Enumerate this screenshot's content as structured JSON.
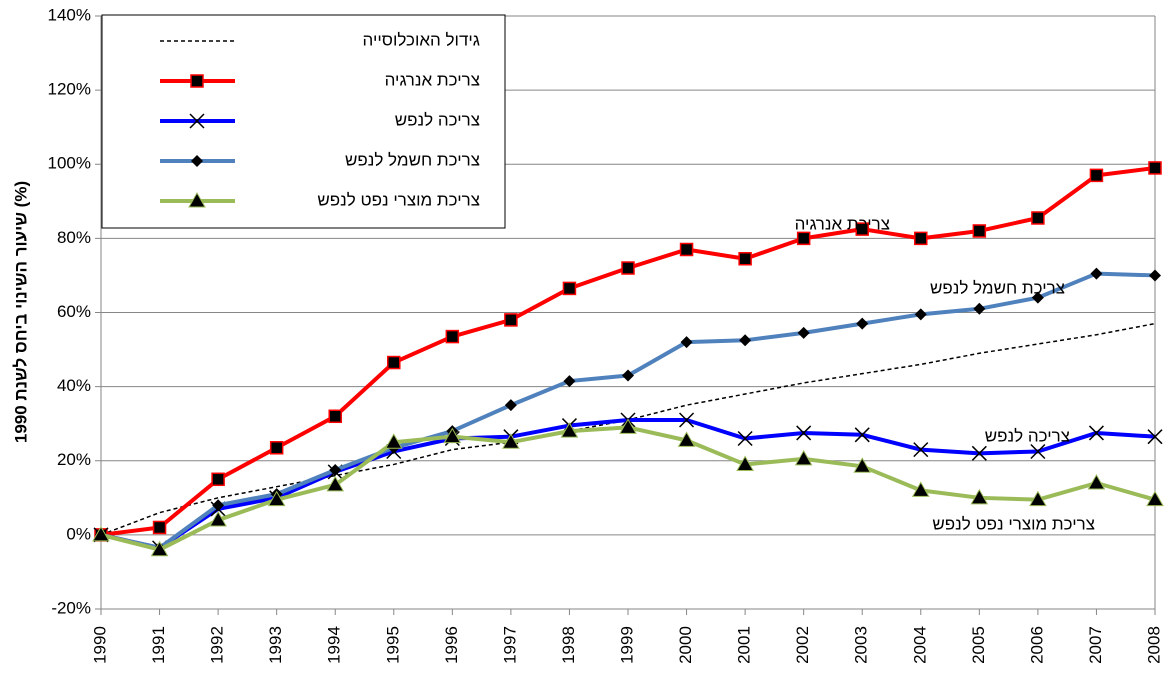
{
  "chart_data": {
    "type": "line",
    "y_axis_label": "שיעור השינוי ביחס לשנת 1990 (%)",
    "categories": [
      "1990",
      "1991",
      "1992",
      "1993",
      "1994",
      "1995",
      "1996",
      "1997",
      "1998",
      "1999",
      "2000",
      "2001",
      "2002",
      "2003",
      "2004",
      "2005",
      "2006",
      "2007",
      "2008"
    ],
    "ylim": [
      -20,
      140
    ],
    "yticks": [
      {
        "value": -20,
        "label": "-20%"
      },
      {
        "value": 0,
        "label": "0%"
      },
      {
        "value": 20,
        "label": "20%"
      },
      {
        "value": 40,
        "label": "40%"
      },
      {
        "value": 60,
        "label": "60%"
      },
      {
        "value": 80,
        "label": "80%"
      },
      {
        "value": 100,
        "label": "100%"
      },
      {
        "value": 120,
        "label": "120%"
      },
      {
        "value": 140,
        "label": "140%"
      }
    ],
    "grid": true,
    "legend": "top-left",
    "series": [
      {
        "name": "גידול האוכלוסייה",
        "color": "#000000",
        "dashed": true,
        "marker": null,
        "values": [
          0,
          6,
          10,
          13,
          16,
          19,
          23,
          25,
          28,
          31,
          35,
          38,
          41,
          43.5,
          46,
          49,
          51.5,
          54,
          57
        ]
      },
      {
        "name": "צריכת אנרגיה",
        "color": "#ff0000",
        "dashed": false,
        "marker": "square",
        "values": [
          0,
          2,
          15,
          23.5,
          32,
          46.5,
          53.5,
          58,
          66.5,
          72,
          77,
          74.5,
          80,
          82.5,
          80,
          82,
          85.5,
          97,
          99
        ]
      },
      {
        "name": "צריכה לנפש",
        "color": "#0000ff",
        "dashed": false,
        "marker": "x",
        "values": [
          0,
          -3.5,
          7,
          10,
          17,
          22.5,
          26,
          26.5,
          29.5,
          31,
          31,
          26,
          27.5,
          27,
          23,
          22,
          22.5,
          27.5,
          26.5
        ]
      },
      {
        "name": "צריכת חשמל לנפש",
        "color": "#4f81bd",
        "dashed": false,
        "marker": "diamond",
        "values": [
          0,
          -3.5,
          8,
          11,
          17.5,
          23.5,
          28,
          35,
          41.5,
          43,
          52,
          52.5,
          54.5,
          57,
          59.5,
          61,
          64,
          70.5,
          70
        ]
      },
      {
        "name": "צריכת מוצרי נפט לנפש",
        "color": "#9bbb59",
        "dashed": false,
        "marker": "triangle",
        "values": [
          0,
          -4,
          4,
          9.5,
          13.5,
          25,
          26.5,
          25,
          28,
          29,
          25.5,
          19,
          20.5,
          18.5,
          12,
          10,
          9.5,
          14,
          9.5
        ]
      }
    ],
    "annotations": [
      "צריכת אנרגיה",
      "צריכת חשמל לנפש",
      "צריכה לנפש",
      "צריכת מוצרי נפט לנפש"
    ]
  }
}
